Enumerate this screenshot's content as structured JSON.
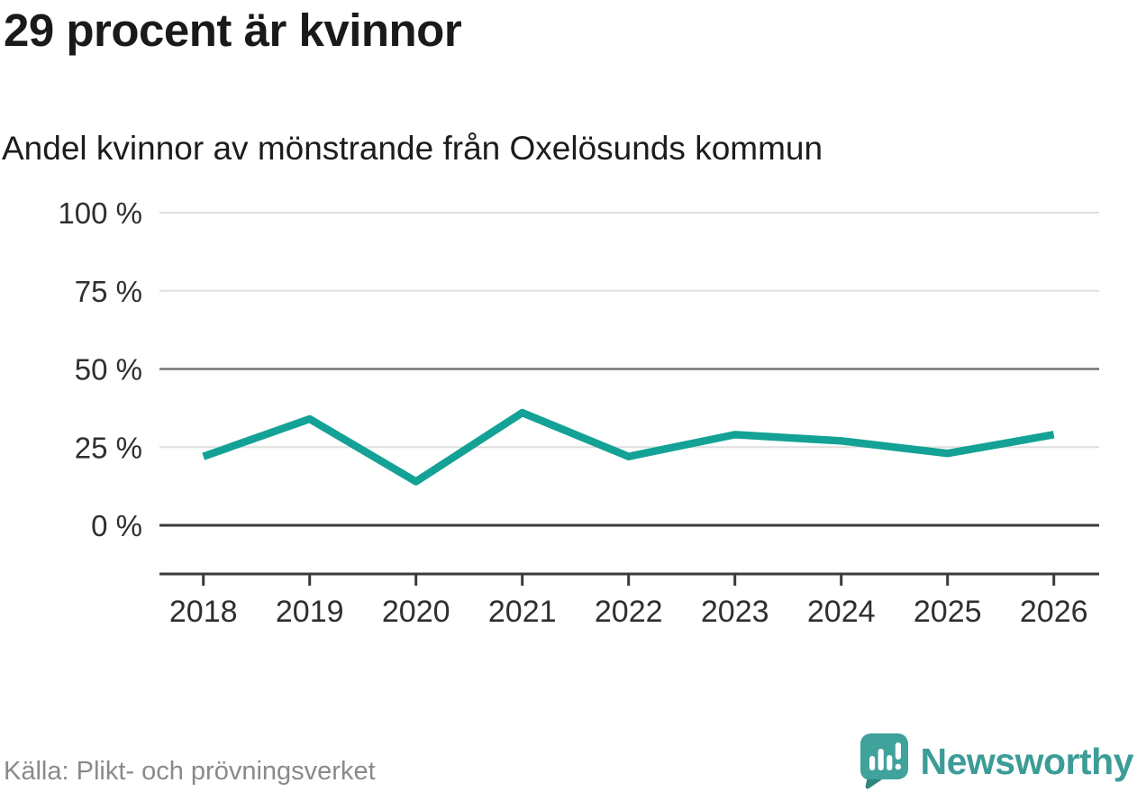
{
  "header": {
    "title": "29 procent är kvinnor",
    "subtitle": "Andel kvinnor av mönstrande från Oxelösunds kommun"
  },
  "footer": {
    "source": "Källa: Plikt- och prövningsverket",
    "brand": "Newsworthy",
    "logo_icon": "newsworthy-speech-bubble-with-bar-chart-icon"
  },
  "colors": {
    "line": "#13a295",
    "brand_teal": "#3c9c97",
    "logo_bubble": "#3fa29b",
    "logo_shadow": "#2f857e",
    "grid_light": "#dfdfdf",
    "grid_mid": "#737373",
    "axis_dark": "#3b3b3b",
    "title_text": "#1a1a1a",
    "tick_text": "#2f2f2f",
    "source_text": "#8a8a8a"
  },
  "chart_data": {
    "type": "line",
    "title": "29 procent är kvinnor",
    "subtitle": "Andel kvinnor av mönstrande från Oxelösunds kommun",
    "x": [
      2018,
      2019,
      2020,
      2021,
      2022,
      2023,
      2024,
      2025,
      2026
    ],
    "series": [
      {
        "name": "Andel kvinnor av mönstrande, Oxelösunds kommun",
        "color": "#13a295",
        "values": [
          22,
          34,
          14,
          36,
          22,
          29,
          27,
          23,
          29
        ]
      }
    ],
    "unit": "%",
    "ylim": [
      0,
      100
    ],
    "y_ticks": [
      {
        "value": 100,
        "label": "100 %"
      },
      {
        "value": 75,
        "label": "75 %"
      },
      {
        "value": 50,
        "label": "50 %"
      },
      {
        "value": 25,
        "label": "25 %"
      },
      {
        "value": 0,
        "label": "0 %"
      }
    ],
    "grid": "horizontal",
    "legend": "none",
    "source": "Källa: Plikt- och prövningsverket"
  }
}
